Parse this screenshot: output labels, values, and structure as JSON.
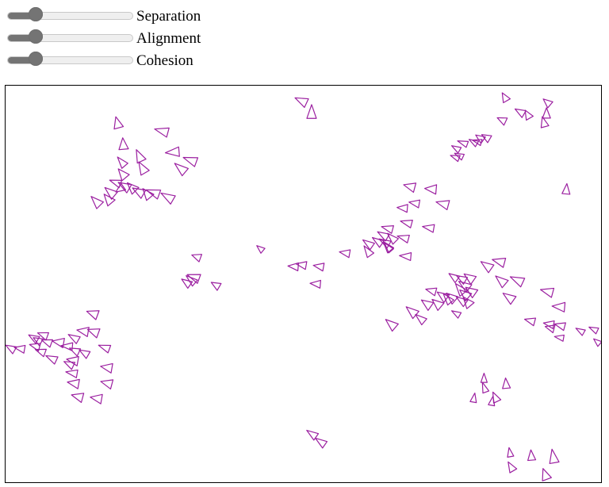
{
  "controls": {
    "separation": {
      "label": "Separation",
      "level_fraction": 0.23
    },
    "alignment": {
      "label": "Alignment",
      "level_fraction": 0.23
    },
    "cohesion": {
      "label": "Cohesion",
      "level_fraction": 0.23
    }
  },
  "simulation": {
    "boid_color": "#9b1fa0",
    "boid_fill": "none"
  }
}
